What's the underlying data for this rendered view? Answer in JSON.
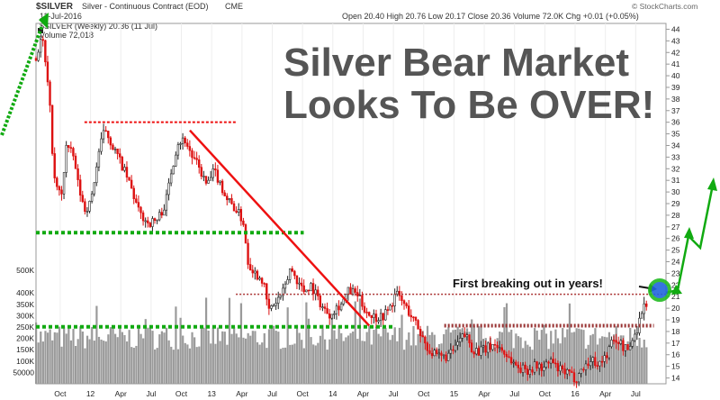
{
  "header": {
    "symbol": "$SILVER",
    "description": "Silver - Continuous Contract (EOD)",
    "exchange": "CME",
    "date": "11-Jul-2016",
    "ohlc": "Open 20.40  High 20.76  Low 20.17  Close 20.36  Volume 72.0K  Chg +0.01 (+0.05%)",
    "copyright": "© StockCharts.com",
    "legend_price": "$SILVER (Weekly) 20.36 (11 Jul)",
    "legend_volume": "Volume 72,018"
  },
  "annotations": {
    "headline_line1": "Silver Bear Market",
    "headline_line2": "Looks To Be OVER!",
    "breakout": "First breaking out in years!"
  },
  "colors": {
    "up": "#222222",
    "down": "#dd1111",
    "volume": "#9a9a9a",
    "support": "#11aa11",
    "resistance": "#ee1111",
    "trendline": "#ee1111",
    "arrow": "#11aa11",
    "circle_fill": "#2266dd",
    "circle_ring": "#22bb22"
  },
  "chart_data": {
    "type": "candlestick",
    "y_axis": {
      "min": 13.5,
      "max": 44.5,
      "ticks": [
        14,
        15,
        16,
        17,
        18,
        19,
        20,
        21,
        22,
        23,
        24,
        25,
        26,
        27,
        28,
        29,
        30,
        31,
        32,
        33,
        34,
        35,
        36,
        37,
        38,
        39,
        40,
        41,
        42,
        43,
        44
      ]
    },
    "volume_axis": {
      "max": 500000,
      "ticks": [
        50000,
        100000,
        150000,
        200000,
        250000,
        300000,
        350000,
        400000,
        500000
      ],
      "tick_labels": [
        "50000",
        "100K",
        "150K",
        "200K",
        "250K",
        "300K",
        "350K",
        "400K",
        "500K"
      ]
    },
    "x_axis": {
      "start": 2011.55,
      "end": 2016.75,
      "tick_values": [
        2011.75,
        2012.0,
        2012.25,
        2012.5,
        2012.75,
        2013.0,
        2013.25,
        2013.5,
        2013.75,
        2014.0,
        2014.25,
        2014.5,
        2014.75,
        2015.0,
        2015.25,
        2015.5,
        2015.75,
        2016.0,
        2016.25,
        2016.5
      ],
      "tick_labels": [
        "Oct",
        "12",
        "Apr",
        "Jul",
        "Oct",
        "13",
        "Apr",
        "Jul",
        "Oct",
        "14",
        "Apr",
        "Jul",
        "Oct",
        "15",
        "Apr",
        "Jul",
        "Oct",
        "16",
        "Apr",
        "Jul"
      ]
    },
    "price_path": [
      [
        2011.55,
        41.5
      ],
      [
        2011.6,
        43.5
      ],
      [
        2011.66,
        38
      ],
      [
        2011.7,
        31
      ],
      [
        2011.76,
        29.5
      ],
      [
        2011.8,
        34
      ],
      [
        2011.86,
        33
      ],
      [
        2011.9,
        30.5
      ],
      [
        2011.95,
        28.5
      ],
      [
        2012.0,
        29
      ],
      [
        2012.07,
        33.5
      ],
      [
        2012.12,
        35.5
      ],
      [
        2012.18,
        34
      ],
      [
        2012.25,
        32.5
      ],
      [
        2012.33,
        30.5
      ],
      [
        2012.4,
        28.2
      ],
      [
        2012.48,
        27.3
      ],
      [
        2012.55,
        27.6
      ],
      [
        2012.62,
        29
      ],
      [
        2012.66,
        31.5
      ],
      [
        2012.72,
        34.3
      ],
      [
        2012.78,
        34.5
      ],
      [
        2012.84,
        33
      ],
      [
        2012.9,
        32
      ],
      [
        2012.96,
        30.5
      ],
      [
        2013.02,
        31.8
      ],
      [
        2013.06,
        31
      ],
      [
        2013.12,
        29.5
      ],
      [
        2013.2,
        28.5
      ],
      [
        2013.26,
        27.5
      ],
      [
        2013.3,
        24
      ],
      [
        2013.36,
        23
      ],
      [
        2013.42,
        22.5
      ],
      [
        2013.47,
        19.8
      ],
      [
        2013.53,
        20.5
      ],
      [
        2013.6,
        21.5
      ],
      [
        2013.65,
        23.5
      ],
      [
        2013.7,
        22.5
      ],
      [
        2013.76,
        21.5
      ],
      [
        2013.82,
        22
      ],
      [
        2013.87,
        21
      ],
      [
        2013.92,
        20
      ],
      [
        2013.97,
        19.5
      ],
      [
        2014.02,
        20
      ],
      [
        2014.08,
        20.5
      ],
      [
        2014.13,
        21.5
      ],
      [
        2014.2,
        21.2
      ],
      [
        2014.26,
        20
      ],
      [
        2014.3,
        19.5
      ],
      [
        2014.36,
        19.2
      ],
      [
        2014.42,
        19.4
      ],
      [
        2014.48,
        20.2
      ],
      [
        2014.52,
        21.3
      ],
      [
        2014.56,
        20.8
      ],
      [
        2014.62,
        19.8
      ],
      [
        2014.68,
        18.8
      ],
      [
        2014.74,
        17.5
      ],
      [
        2014.8,
        16.3
      ],
      [
        2014.86,
        15.8
      ],
      [
        2014.92,
        15.8
      ],
      [
        2014.97,
        16
      ],
      [
        2015.02,
        16.8
      ],
      [
        2015.07,
        17.5
      ],
      [
        2015.1,
        17.7
      ],
      [
        2015.15,
        16.5
      ],
      [
        2015.21,
        16.3
      ],
      [
        2015.27,
        16.5
      ],
      [
        2015.32,
        16.9
      ],
      [
        2015.38,
        16.6
      ],
      [
        2015.44,
        15.9
      ],
      [
        2015.5,
        15.2
      ],
      [
        2015.55,
        14.8
      ],
      [
        2015.62,
        14.7
      ],
      [
        2015.68,
        15.1
      ],
      [
        2015.74,
        14.8
      ],
      [
        2015.8,
        15.5
      ],
      [
        2015.85,
        14.8
      ],
      [
        2015.9,
        14.5
      ],
      [
        2015.96,
        14.3
      ],
      [
        2016.0,
        13.9
      ],
      [
        2016.04,
        14.5
      ],
      [
        2016.1,
        15.3
      ],
      [
        2016.15,
        15.5
      ],
      [
        2016.2,
        15.2
      ],
      [
        2016.26,
        16
      ],
      [
        2016.3,
        17
      ],
      [
        2016.35,
        17.3
      ],
      [
        2016.4,
        16.6
      ],
      [
        2016.44,
        16.4
      ],
      [
        2016.48,
        17.5
      ],
      [
        2016.52,
        18.5
      ],
      [
        2016.55,
        19.8
      ],
      [
        2016.58,
        20.4
      ]
    ],
    "levels": [
      {
        "kind": "resistance-dotted",
        "y": 36.0,
        "x1": 2011.95,
        "x2": 2013.2
      },
      {
        "kind": "support-dotted",
        "y": 26.5,
        "x1": 2011.55,
        "x2": 2013.76
      },
      {
        "kind": "resistance-dotted",
        "y": 21.2,
        "x1": 2013.2,
        "x2": 2016.75
      },
      {
        "kind": "resistance-dotted",
        "y": 18.5,
        "x1": 2014.92,
        "x2": 2016.65
      },
      {
        "kind": "support-dotted",
        "y": 18.4,
        "x1": 2011.55,
        "x2": 2014.5
      }
    ],
    "trendline": {
      "x1": 2012.82,
      "y1": 35.3,
      "x2": 2014.3,
      "y2": 18.5
    }
  }
}
